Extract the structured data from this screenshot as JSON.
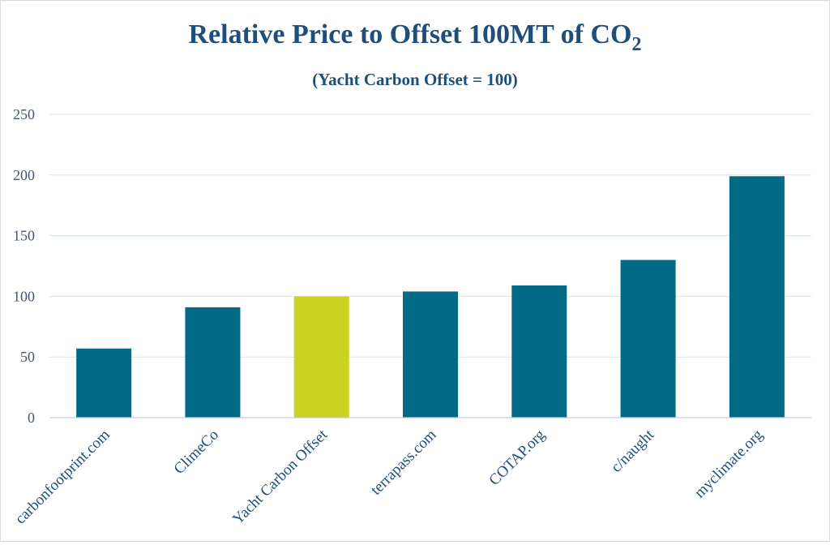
{
  "chart_data": {
    "type": "bar",
    "title_main": "Relative Price to Offset 100MT of CO",
    "title_sub": "2",
    "subtitle": "(Yacht Carbon Offset = 100)",
    "categories": [
      "carbonfootprint.com",
      "ClimeCo",
      "Yacht Carbon Offset",
      "terrapass.com",
      "COTAP.org",
      "c/naught",
      "myclimate.org"
    ],
    "values": [
      57,
      91,
      100,
      104,
      109,
      130,
      199
    ],
    "highlight_index": 2,
    "ylim": [
      0,
      250
    ],
    "yticks": [
      "0",
      "50",
      "100",
      "150",
      "200",
      "250"
    ],
    "xlabel": "",
    "ylabel": "",
    "colors": {
      "bar": "#006a87",
      "highlight": "#cad321"
    }
  }
}
